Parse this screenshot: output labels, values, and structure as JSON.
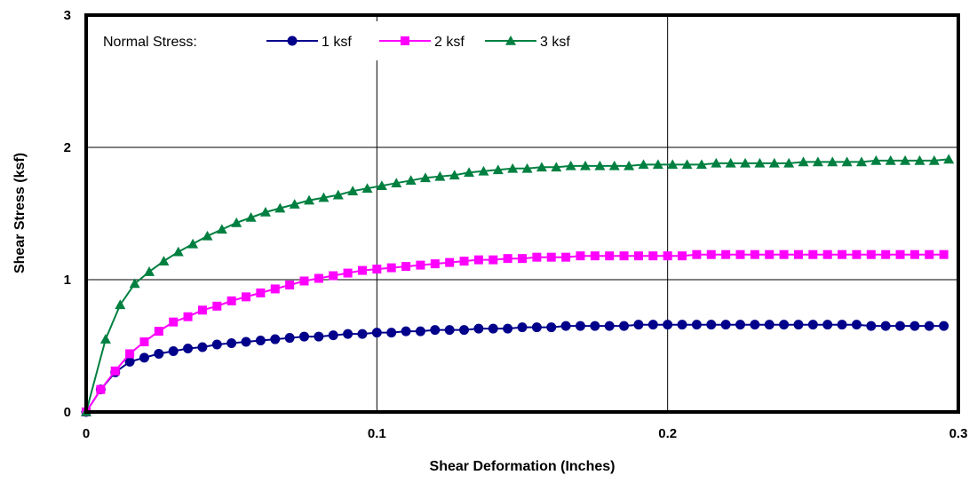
{
  "chart_data": {
    "type": "line",
    "title": "",
    "xlabel": "Shear Deformation (Inches)",
    "ylabel": "Shear Stress (ksf)",
    "xlim": [
      0,
      0.3
    ],
    "ylim": [
      0,
      3
    ],
    "x_ticks": [
      0,
      0.1,
      0.2,
      0.3
    ],
    "x_tick_labels": [
      "0",
      "0.1",
      "0.2",
      "0.3"
    ],
    "y_ticks": [
      0,
      1,
      2,
      3
    ],
    "y_tick_labels": [
      "0",
      "1",
      "2",
      "3"
    ],
    "grid": true,
    "legend": {
      "placement": "top-left",
      "heading": "Normal Stress:"
    },
    "series": [
      {
        "name": "1 ksf",
        "color": "#00008B",
        "marker": "circle",
        "x": [
          0,
          0.005,
          0.01,
          0.015,
          0.02,
          0.025,
          0.03,
          0.035,
          0.04,
          0.045,
          0.05,
          0.055,
          0.06,
          0.065,
          0.07,
          0.075,
          0.08,
          0.085,
          0.09,
          0.095,
          0.1,
          0.105,
          0.11,
          0.115,
          0.12,
          0.125,
          0.13,
          0.135,
          0.14,
          0.145,
          0.15,
          0.155,
          0.16,
          0.165,
          0.17,
          0.175,
          0.18,
          0.185,
          0.19,
          0.195,
          0.2,
          0.205,
          0.21,
          0.215,
          0.22,
          0.225,
          0.23,
          0.235,
          0.24,
          0.245,
          0.25,
          0.255,
          0.26,
          0.265,
          0.27,
          0.275,
          0.28,
          0.285,
          0.29,
          0.295
        ],
        "y": [
          0,
          0.17,
          0.3,
          0.38,
          0.41,
          0.44,
          0.46,
          0.48,
          0.49,
          0.51,
          0.52,
          0.53,
          0.54,
          0.55,
          0.56,
          0.57,
          0.57,
          0.58,
          0.59,
          0.59,
          0.6,
          0.6,
          0.61,
          0.61,
          0.62,
          0.62,
          0.62,
          0.63,
          0.63,
          0.63,
          0.64,
          0.64,
          0.64,
          0.65,
          0.65,
          0.65,
          0.65,
          0.65,
          0.66,
          0.66,
          0.66,
          0.66,
          0.66,
          0.66,
          0.66,
          0.66,
          0.66,
          0.66,
          0.66,
          0.66,
          0.66,
          0.66,
          0.66,
          0.66,
          0.65,
          0.65,
          0.65,
          0.65,
          0.65,
          0.65
        ]
      },
      {
        "name": "2 ksf",
        "color": "#FF00FF",
        "marker": "square",
        "x": [
          0,
          0.005,
          0.01,
          0.015,
          0.02,
          0.025,
          0.03,
          0.035,
          0.04,
          0.045,
          0.05,
          0.055,
          0.06,
          0.065,
          0.07,
          0.075,
          0.08,
          0.085,
          0.09,
          0.095,
          0.1,
          0.105,
          0.11,
          0.115,
          0.12,
          0.125,
          0.13,
          0.135,
          0.14,
          0.145,
          0.15,
          0.155,
          0.16,
          0.165,
          0.17,
          0.175,
          0.18,
          0.185,
          0.19,
          0.195,
          0.2,
          0.205,
          0.21,
          0.215,
          0.22,
          0.225,
          0.23,
          0.235,
          0.24,
          0.245,
          0.25,
          0.255,
          0.26,
          0.265,
          0.27,
          0.275,
          0.28,
          0.285,
          0.29,
          0.295
        ],
        "y": [
          0,
          0.17,
          0.31,
          0.44,
          0.53,
          0.61,
          0.68,
          0.72,
          0.77,
          0.8,
          0.84,
          0.87,
          0.9,
          0.93,
          0.96,
          0.99,
          1.01,
          1.03,
          1.05,
          1.07,
          1.08,
          1.09,
          1.1,
          1.11,
          1.12,
          1.13,
          1.14,
          1.15,
          1.15,
          1.16,
          1.16,
          1.17,
          1.17,
          1.17,
          1.18,
          1.18,
          1.18,
          1.18,
          1.18,
          1.18,
          1.18,
          1.18,
          1.19,
          1.19,
          1.19,
          1.19,
          1.19,
          1.19,
          1.19,
          1.19,
          1.19,
          1.19,
          1.19,
          1.19,
          1.19,
          1.19,
          1.19,
          1.19,
          1.19,
          1.19
        ]
      },
      {
        "name": "3 ksf",
        "color": "#008040",
        "marker": "triangle",
        "x": [
          0,
          0.0067,
          0.0117,
          0.0167,
          0.0217,
          0.0267,
          0.0317,
          0.0367,
          0.0417,
          0.0467,
          0.0517,
          0.0567,
          0.0617,
          0.0667,
          0.0717,
          0.0767,
          0.0817,
          0.0867,
          0.0917,
          0.0967,
          0.1017,
          0.1067,
          0.1117,
          0.1167,
          0.1217,
          0.1267,
          0.1317,
          0.1367,
          0.1417,
          0.1467,
          0.1517,
          0.1567,
          0.1617,
          0.1667,
          0.1717,
          0.1767,
          0.1817,
          0.1867,
          0.1917,
          0.1967,
          0.2017,
          0.2067,
          0.2117,
          0.2167,
          0.2217,
          0.2267,
          0.2317,
          0.2367,
          0.2417,
          0.2467,
          0.2517,
          0.2567,
          0.2617,
          0.2667,
          0.2717,
          0.2767,
          0.2817,
          0.2867,
          0.2917,
          0.2967
        ],
        "y": [
          0,
          0.55,
          0.81,
          0.97,
          1.06,
          1.14,
          1.21,
          1.27,
          1.33,
          1.38,
          1.43,
          1.47,
          1.51,
          1.54,
          1.57,
          1.6,
          1.62,
          1.64,
          1.67,
          1.69,
          1.71,
          1.73,
          1.75,
          1.77,
          1.78,
          1.79,
          1.81,
          1.82,
          1.83,
          1.84,
          1.84,
          1.85,
          1.85,
          1.86,
          1.86,
          1.86,
          1.86,
          1.86,
          1.87,
          1.87,
          1.87,
          1.87,
          1.87,
          1.88,
          1.88,
          1.88,
          1.88,
          1.88,
          1.88,
          1.89,
          1.89,
          1.89,
          1.89,
          1.89,
          1.9,
          1.9,
          1.9,
          1.9,
          1.9,
          1.91
        ]
      }
    ]
  }
}
